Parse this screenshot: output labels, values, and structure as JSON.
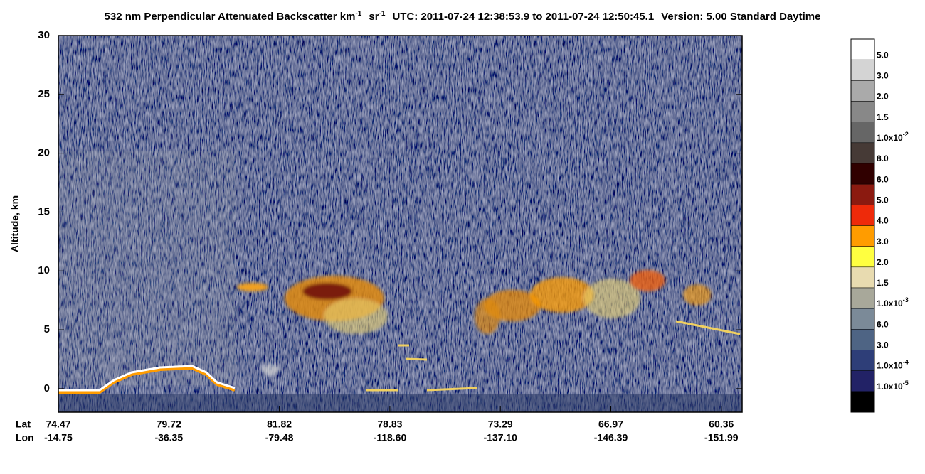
{
  "chart_data": {
    "type": "heatmap",
    "title_parts": [
      {
        "text": "532 nm Perpendicular Attenuated Backscatter km",
        "sup": "-1"
      },
      {
        "text": "sr",
        "sup": "-1"
      },
      {
        "text": "UTC: 2011-07-24 12:38:53.9 to 2011-07-24 12:50:45.1"
      },
      {
        "text": "Version: 5.00 Standard Daytime"
      }
    ],
    "y_label": "Altitude, km",
    "ylim": [
      -2,
      30
    ],
    "yticks": [
      0,
      5,
      10,
      15,
      20,
      25,
      30
    ],
    "lat_label": "Lat",
    "lon_label": "Lon",
    "lat": [
      "74.47",
      "79.72",
      "81.82",
      "78.83",
      "73.29",
      "66.97",
      "60.36"
    ],
    "lon": [
      "-14.75",
      "-36.35",
      "-79.48",
      "-118.60",
      "-137.10",
      "-146.39",
      "-151.99"
    ],
    "colorbar": {
      "colors": [
        "#ffffff",
        "#d4d4d4",
        "#aaaaaa",
        "#888888",
        "#666666",
        "#463a36",
        "#300000",
        "#8b1a10",
        "#ee2a0a",
        "#ff9c00",
        "#ffff40",
        "#e8dbb0",
        "#a8a89a",
        "#7b8a98",
        "#4e6484",
        "#2e3e78",
        "#222266",
        "#000000"
      ],
      "labels": [
        "5.0",
        "3.0",
        "2.0",
        "1.5",
        {
          "text": "1.0x10",
          "sup": "-2"
        },
        "8.0",
        "6.0",
        "5.0",
        "4.0",
        "3.0",
        "2.0",
        "1.5",
        {
          "text": "1.0x10",
          "sup": "-3"
        },
        "6.0",
        "3.0",
        {
          "text": "1.0x10",
          "sup": "-4"
        },
        {
          "text": "1.0x10",
          "sup": "-5"
        }
      ]
    }
  }
}
